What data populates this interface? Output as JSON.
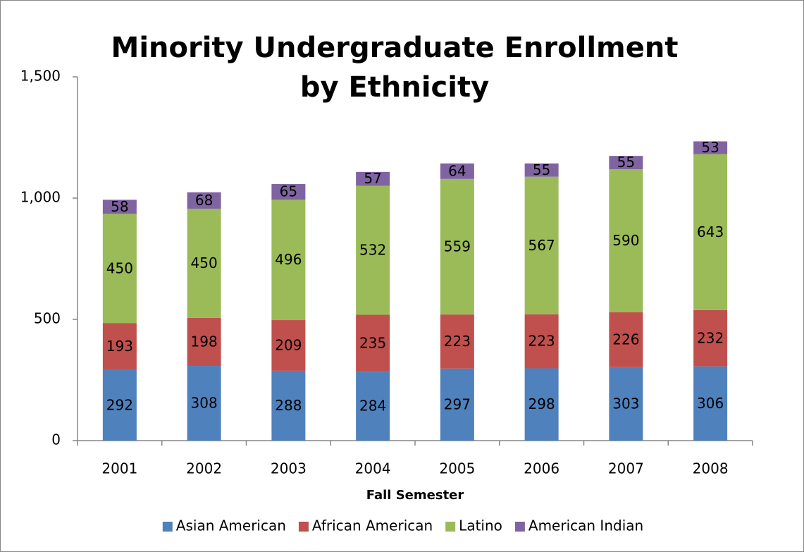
{
  "chart_data": {
    "type": "stacked_bar",
    "title": "Minority Undergraduate Enrollment by Ethnicity",
    "x_label": "Fall Semester",
    "categories": [
      "2001",
      "2002",
      "2003",
      "2004",
      "2005",
      "2006",
      "2007",
      "2008"
    ],
    "series": [
      {
        "name": "Asian American",
        "color": "#4f81bd",
        "values": [
          292,
          308,
          288,
          284,
          297,
          298,
          303,
          306
        ]
      },
      {
        "name": "African American",
        "color": "#c0504d",
        "values": [
          193,
          198,
          209,
          235,
          223,
          223,
          226,
          232
        ]
      },
      {
        "name": "Latino",
        "color": "#9bbb59",
        "values": [
          450,
          450,
          496,
          532,
          559,
          567,
          590,
          643
        ]
      },
      {
        "name": "American Indian",
        "color": "#8064a2",
        "values": [
          58,
          68,
          65,
          57,
          64,
          55,
          55,
          53
        ]
      }
    ],
    "ylim": [
      0,
      1500
    ],
    "yticks": [
      0,
      500,
      {
        "value": 1000,
        "label": "1,000"
      },
      {
        "value": 1500,
        "label": "1,500"
      }
    ],
    "legend": "bottom"
  }
}
